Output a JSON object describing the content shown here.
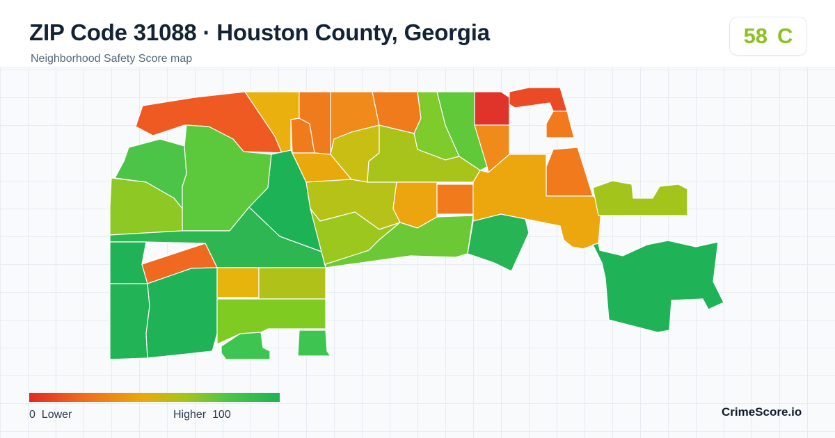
{
  "header": {
    "title": "ZIP Code 31088 · Houston County, Georgia",
    "subtitle": "Neighborhood Safety Score map"
  },
  "score": {
    "value": "58",
    "grade": "C",
    "color": "#8cc21f"
  },
  "legend": {
    "low_value": "0",
    "low_label": "Lower",
    "high_label": "Higher",
    "high_value": "100",
    "colors": [
      "#e02a26",
      "#ef6d1d",
      "#e9a90c",
      "#a7c41a",
      "#4cc447",
      "#1eb257"
    ]
  },
  "brand": "CrimeScore.io",
  "map": {
    "regions": [
      {
        "name": "nw-tract-a",
        "color": "#ef5a22"
      },
      {
        "name": "n-tract-b",
        "color": "#e9b00e"
      },
      {
        "name": "n-tract-c",
        "color": "#ef7b1c"
      },
      {
        "name": "n-tract-d",
        "color": "#ef7b1c"
      },
      {
        "name": "n-tract-e",
        "color": "#f08a1a"
      },
      {
        "name": "n-tract-f",
        "color": "#ef7b1c"
      },
      {
        "name": "n-tract-g",
        "color": "#7fcb2c"
      },
      {
        "name": "n-tract-h",
        "color": "#5fc93a"
      },
      {
        "name": "ne-tract-red",
        "color": "#e0332a"
      },
      {
        "name": "ne-tract-strip",
        "color": "#ea4a24"
      },
      {
        "name": "ne-tract-small",
        "color": "#f07a1c"
      },
      {
        "name": "ne-tract-east",
        "color": "#f07a1c"
      },
      {
        "name": "ne-tract-mid",
        "color": "#f08a1a"
      },
      {
        "name": "w-tract-a",
        "color": "#4cc447"
      },
      {
        "name": "w-tract-b",
        "color": "#5cc83c"
      },
      {
        "name": "w-tract-c",
        "color": "#8ec824"
      },
      {
        "name": "c-tract-a",
        "color": "#1eb257"
      },
      {
        "name": "c-tract-b",
        "color": "#2eb653"
      },
      {
        "name": "c-tract-c",
        "color": "#e9a90c"
      },
      {
        "name": "c-tract-d",
        "color": "#b6c218"
      },
      {
        "name": "c-tract-e",
        "color": "#c9bf14"
      },
      {
        "name": "c-tract-f",
        "color": "#a8c31a"
      },
      {
        "name": "c-tract-g",
        "color": "#9cc71e"
      },
      {
        "name": "c-tract-h",
        "color": "#eca40f"
      },
      {
        "name": "c-tract-i",
        "color": "#f07a1c"
      },
      {
        "name": "c-tract-j",
        "color": "#6cc935"
      },
      {
        "name": "e-tract-a",
        "color": "#eca70e"
      },
      {
        "name": "e-tract-b",
        "color": "#26b455"
      },
      {
        "name": "e-tract-c",
        "color": "#a3c51b"
      },
      {
        "name": "se-tract-a",
        "color": "#1fb257"
      },
      {
        "name": "sw-tract-a",
        "color": "#1fb257"
      },
      {
        "name": "sw-tract-b",
        "color": "#ef6a20"
      },
      {
        "name": "sw-tract-c",
        "color": "#22b356"
      },
      {
        "name": "sw-tract-d",
        "color": "#1fb257"
      },
      {
        "name": "s-tract-a",
        "color": "#e7b40e"
      },
      {
        "name": "s-tract-b",
        "color": "#b0c219"
      },
      {
        "name": "s-tract-c",
        "color": "#7fcb22"
      },
      {
        "name": "s-tract-d",
        "color": "#3ec450"
      },
      {
        "name": "s-tract-e",
        "color": "#3ec450"
      }
    ]
  }
}
